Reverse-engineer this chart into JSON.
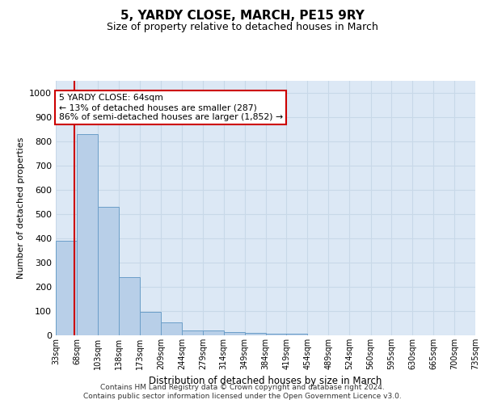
{
  "title1": "5, YARDY CLOSE, MARCH, PE15 9RY",
  "title2": "Size of property relative to detached houses in March",
  "xlabel": "Distribution of detached houses by size in March",
  "ylabel": "Number of detached properties",
  "bin_edges": [
    33,
    68,
    103,
    138,
    173,
    209,
    244,
    279,
    314,
    349,
    384,
    419,
    454,
    489,
    524,
    560,
    595,
    630,
    665,
    700,
    735
  ],
  "bar_heights": [
    390,
    830,
    530,
    240,
    98,
    52,
    20,
    20,
    15,
    10,
    8,
    8,
    0,
    0,
    0,
    0,
    0,
    0,
    0,
    0
  ],
  "bar_color": "#b8cfe8",
  "bar_edge_color": "#6b9ec8",
  "vline_x": 64,
  "vline_color": "#cc0000",
  "annotation_text": "5 YARDY CLOSE: 64sqm\n← 13% of detached houses are smaller (287)\n86% of semi-detached houses are larger (1,852) →",
  "annotation_box_facecolor": "#ffffff",
  "annotation_box_edgecolor": "#cc0000",
  "ylim": [
    0,
    1050
  ],
  "yticks": [
    0,
    100,
    200,
    300,
    400,
    500,
    600,
    700,
    800,
    900,
    1000
  ],
  "grid_color": "#c8d8e8",
  "background_color": "#dce8f5",
  "footer1": "Contains HM Land Registry data © Crown copyright and database right 2024.",
  "footer2": "Contains public sector information licensed under the Open Government Licence v3.0."
}
